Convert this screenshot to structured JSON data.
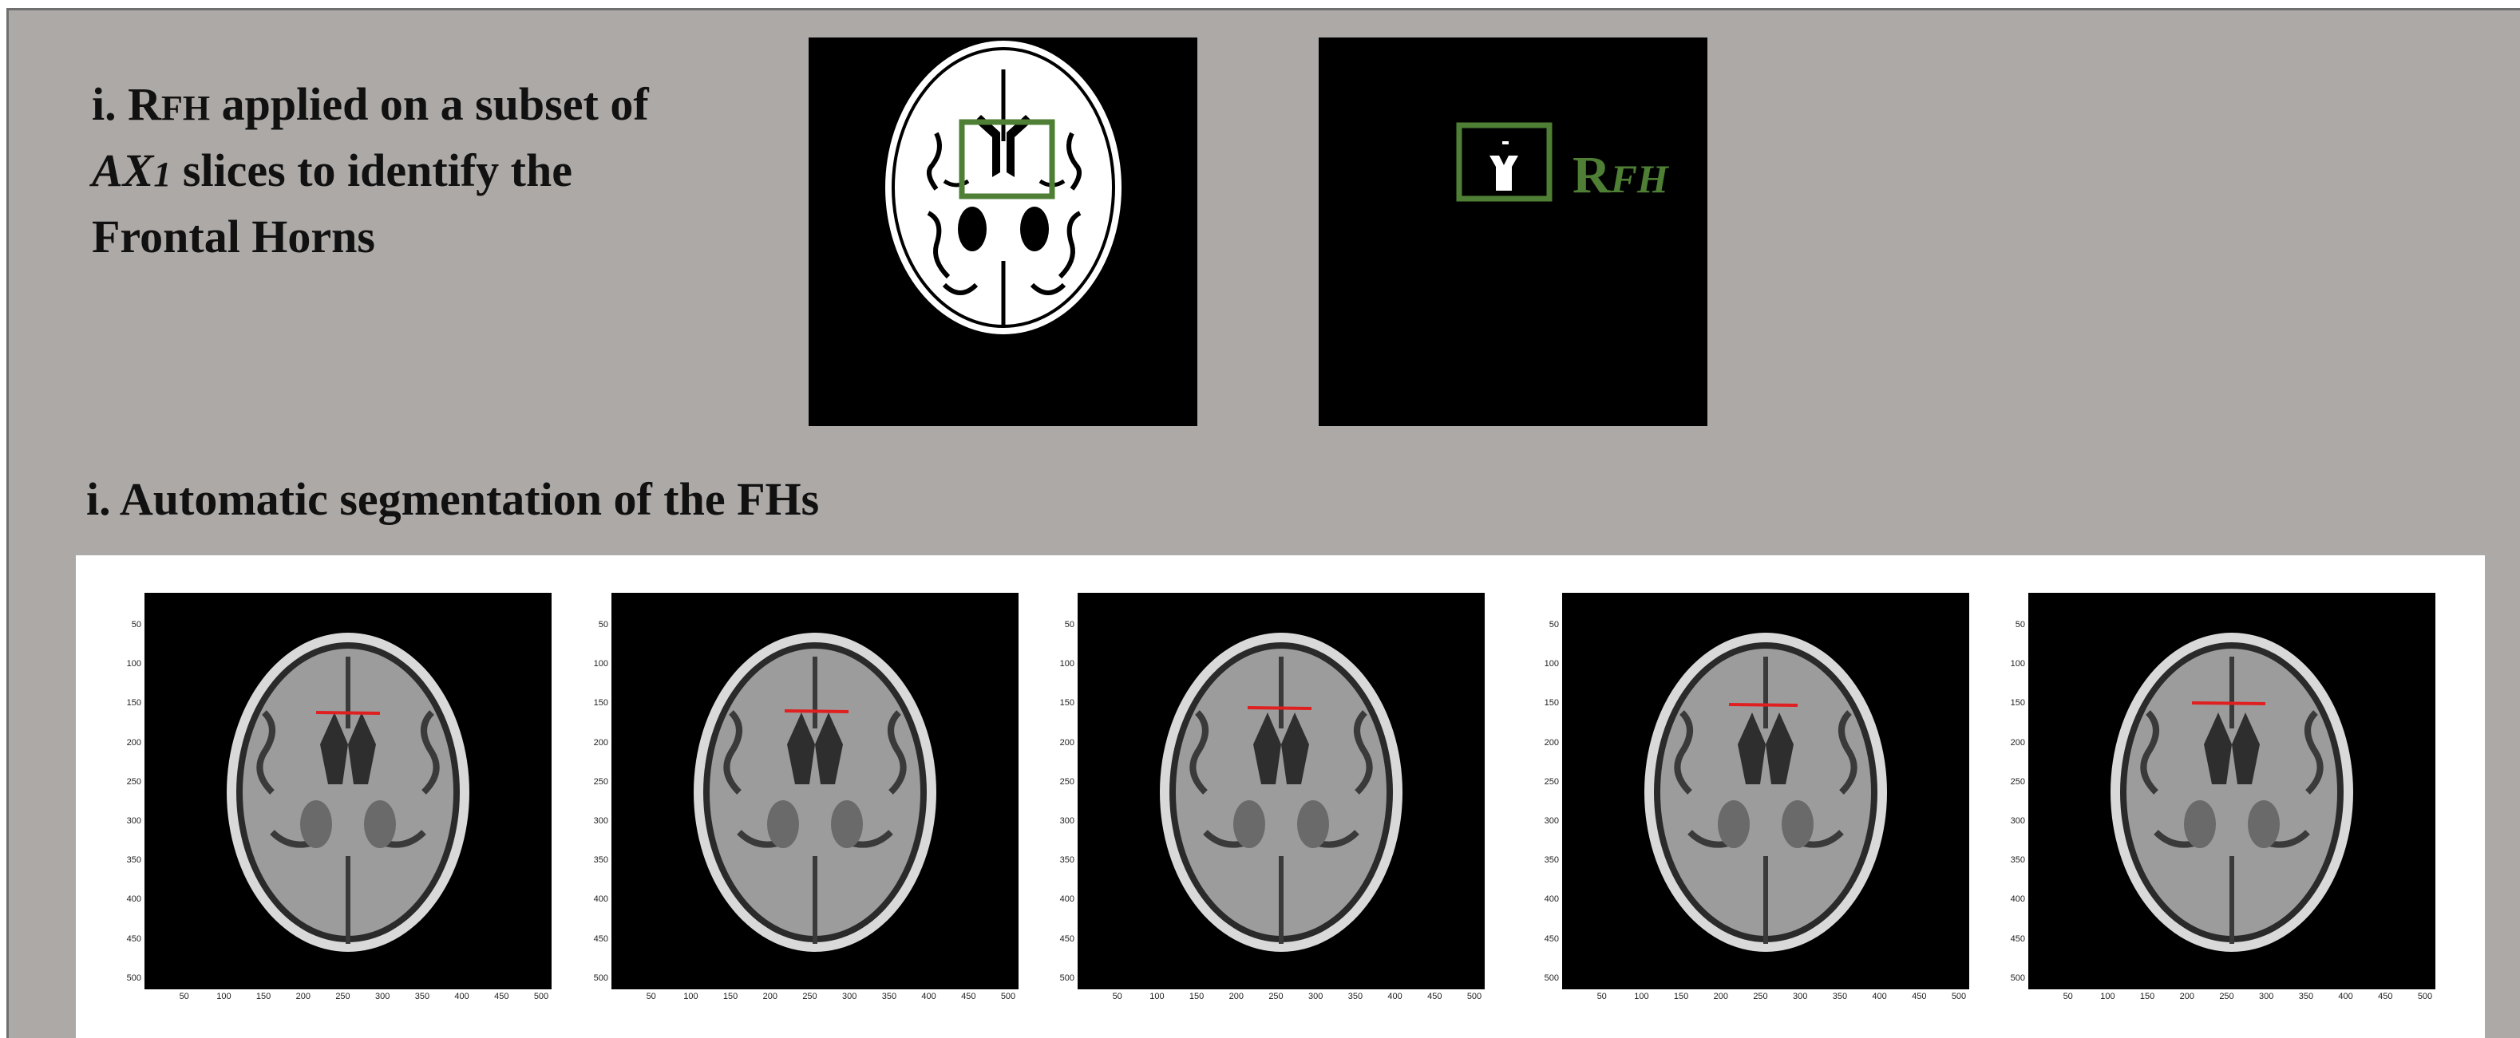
{
  "section1": {
    "line1_prefix": "i. R",
    "line1_sub": "FH",
    "line1_rest": " applied on a subset of",
    "line2_italic": "AX",
    "line2_sub": "1",
    "line2_rest": " slices to identify the",
    "line3": "Frontal Horns"
  },
  "rfh_label": {
    "main": "R",
    "sub": "FH"
  },
  "section2": {
    "title": "i. Automatic segmentation of the FHs"
  },
  "colors": {
    "background": "#ada9a7",
    "box_green": "#4e7f35",
    "line_red": "#e02020"
  },
  "mri_panels": {
    "count": 5,
    "y_ticks": [
      "50",
      "100",
      "150",
      "200",
      "250",
      "300",
      "350",
      "400",
      "450",
      "500"
    ],
    "x_ticks": [
      "50",
      "100",
      "150",
      "200",
      "250",
      "300",
      "350",
      "400",
      "450",
      "500"
    ]
  }
}
